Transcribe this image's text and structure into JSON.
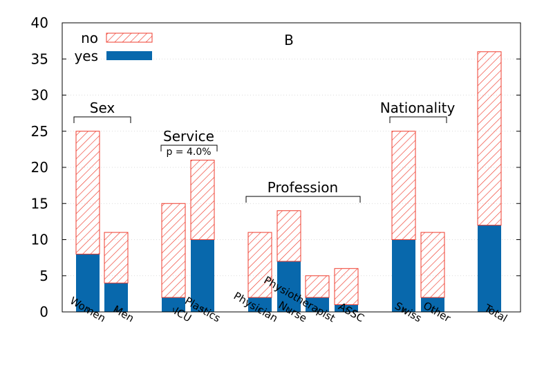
{
  "chart_data": {
    "type": "bar",
    "stacked": true,
    "title": "B",
    "xlabel": "",
    "ylabel": "",
    "ylim": [
      0,
      40
    ],
    "yticks": [
      0,
      5,
      10,
      15,
      20,
      25,
      30,
      35,
      40
    ],
    "grid": "horizontal dotted",
    "legend": "top-left",
    "categories": [
      "Women",
      "Men",
      "ICU",
      "Plastics",
      "Physician",
      "Nurse",
      "Physiotherapist",
      "ASSC",
      "Swiss",
      "Other",
      "Total"
    ],
    "series": [
      {
        "name": "yes",
        "color": "#0868ac",
        "pattern": "solid",
        "values": [
          8,
          4,
          2,
          10,
          2,
          7,
          2,
          1,
          10,
          2,
          12
        ]
      },
      {
        "name": "no",
        "color": "#ef3b2c",
        "pattern": "hatched",
        "values": [
          17,
          7,
          13,
          11,
          9,
          7,
          3,
          5,
          15,
          9,
          24
        ]
      }
    ],
    "groups": [
      {
        "label": "Sex",
        "note": ""
      },
      {
        "label": "Service",
        "note": "p = 4.0%"
      },
      {
        "label": "Profession",
        "note": ""
      },
      {
        "label": "Nationality",
        "note": ""
      }
    ]
  }
}
